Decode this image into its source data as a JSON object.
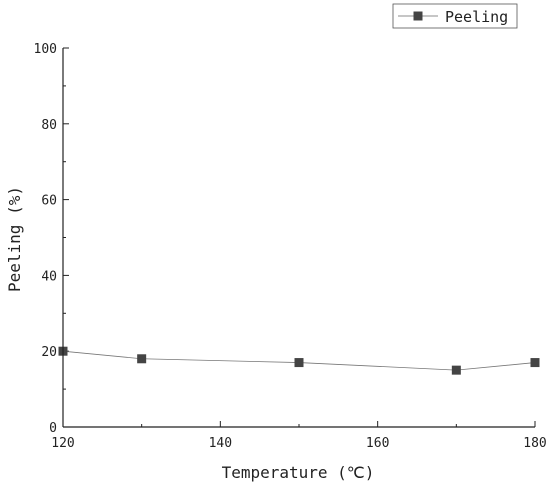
{
  "chart_data": {
    "type": "line",
    "xlabel": "Temperature (℃)",
    "ylabel": "Peeling (%)",
    "xlim": [
      120,
      180
    ],
    "ylim": [
      0,
      100
    ],
    "x_ticks": [
      120,
      140,
      160,
      180
    ],
    "y_ticks": [
      0,
      20,
      40,
      60,
      80,
      100
    ],
    "grid": false,
    "legend_position": "top-right",
    "series": [
      {
        "name": "Peeling",
        "marker": "square",
        "color": "#444444",
        "x": [
          120,
          130,
          150,
          170,
          180
        ],
        "y": [
          20,
          18,
          17,
          15,
          17
        ]
      }
    ]
  }
}
